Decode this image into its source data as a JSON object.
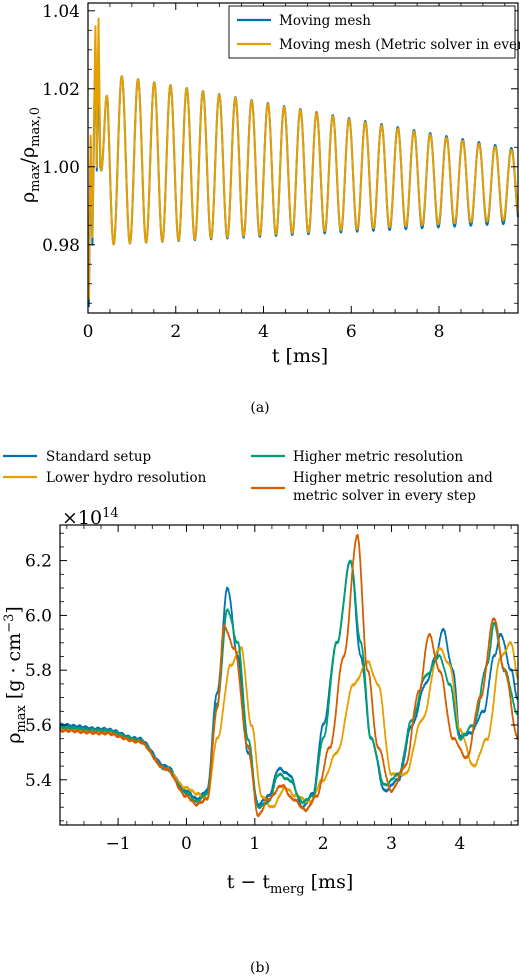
{
  "chart_data": [
    {
      "type": "line",
      "title": "",
      "panel_label": "(a)",
      "xlabel": "t [ms]",
      "ylabel": "ρ_max/ρ_max,0",
      "xlim": [
        0,
        9.8
      ],
      "ylim": [
        0.9625,
        1.042
      ],
      "xticks": [
        0,
        2,
        4,
        6,
        8
      ],
      "yticks": [
        0.98,
        1.0,
        1.02,
        1.04
      ],
      "ytick_labels": [
        "0.98",
        "1.00",
        "1.02",
        "1.04"
      ],
      "legend": {
        "placement": "top-right"
      },
      "series": [
        {
          "name": "Moving mesh",
          "color": "#0072b2",
          "oscillation": {
            "period_ms": 0.37,
            "first_peak_ms": 0.4,
            "peak_start": 1.024,
            "peak_end": 1.0045,
            "trough_start": 0.98,
            "trough_end": 0.9855
          },
          "points": [
            [
              0.02,
              0.964
            ],
            [
              0.06,
              1.006
            ],
            [
              0.1,
              0.98
            ],
            [
              0.14,
              1.012
            ],
            [
              0.17,
              1.033
            ],
            [
              0.2,
              0.999
            ],
            [
              0.24,
              1.031
            ],
            [
              0.28,
              1.0
            ],
            [
              0.3,
              0.999
            ]
          ]
        },
        {
          "name": "Moving mesh (Metric solver in every step)",
          "color": "#e69f00",
          "oscillation": {
            "period_ms": 0.37,
            "first_peak_ms": 0.4,
            "peak_start": 1.024,
            "peak_end": 1.004,
            "trough_start": 0.98,
            "trough_end": 0.9865
          },
          "points": [
            [
              0.02,
              0.966
            ],
            [
              0.06,
              1.008
            ],
            [
              0.1,
              0.982
            ],
            [
              0.14,
              1.014
            ],
            [
              0.17,
              1.036
            ],
            [
              0.2,
              1.0
            ],
            [
              0.24,
              1.038
            ],
            [
              0.28,
              1.002
            ],
            [
              0.3,
              0.999
            ]
          ]
        }
      ]
    },
    {
      "type": "line",
      "title": "",
      "panel_label": "(b)",
      "xlabel": "t − t_merg [ms]",
      "ylabel": "ρ_max [g · cm^−3]",
      "scale_note": "×10^14",
      "xlim": [
        -1.85,
        4.85
      ],
      "ylim": [
        5.235,
        6.33
      ],
      "xticks": [
        -1,
        0,
        1,
        2,
        3,
        4
      ],
      "xtick_labels": [
        "−1",
        "0",
        "1",
        "2",
        "3",
        "4"
      ],
      "yticks": [
        5.4,
        5.6,
        5.8,
        6.0,
        6.2
      ],
      "ytick_labels": [
        "5.4",
        "5.6",
        "5.8",
        "6.0",
        "6.2"
      ],
      "legend": {
        "placement": "above-plot",
        "columns": 2
      },
      "series": [
        {
          "name": "Standard setup",
          "color": "#0072b2",
          "points": [
            [
              -1.85,
              5.6
            ],
            [
              -1.2,
              5.585
            ],
            [
              -0.7,
              5.55
            ],
            [
              -0.3,
              5.45
            ],
            [
              0.0,
              5.36
            ],
            [
              0.15,
              5.33
            ],
            [
              0.3,
              5.36
            ],
            [
              0.45,
              5.72
            ],
            [
              0.6,
              6.1
            ],
            [
              0.75,
              5.85
            ],
            [
              0.9,
              5.5
            ],
            [
              1.05,
              5.31
            ],
            [
              1.2,
              5.34
            ],
            [
              1.35,
              5.44
            ],
            [
              1.5,
              5.42
            ],
            [
              1.7,
              5.3
            ],
            [
              1.85,
              5.35
            ],
            [
              2.0,
              5.6
            ],
            [
              2.2,
              5.9
            ],
            [
              2.4,
              6.2
            ],
            [
              2.55,
              5.85
            ],
            [
              2.7,
              5.55
            ],
            [
              2.9,
              5.36
            ],
            [
              3.1,
              5.4
            ],
            [
              3.3,
              5.6
            ],
            [
              3.5,
              5.75
            ],
            [
              3.65,
              5.85
            ],
            [
              3.75,
              5.95
            ],
            [
              3.9,
              5.8
            ],
            [
              4.0,
              5.56
            ],
            [
              4.15,
              5.57
            ],
            [
              4.35,
              5.65
            ],
            [
              4.5,
              5.85
            ],
            [
              4.6,
              5.93
            ],
            [
              4.75,
              5.8
            ],
            [
              4.85,
              5.69
            ]
          ]
        },
        {
          "name": "Lower hydro resolution",
          "color": "#e69f00",
          "points": [
            [
              -1.85,
              5.585
            ],
            [
              -1.2,
              5.575
            ],
            [
              -0.7,
              5.54
            ],
            [
              -0.3,
              5.44
            ],
            [
              0.0,
              5.37
            ],
            [
              0.15,
              5.35
            ],
            [
              0.3,
              5.33
            ],
            [
              0.45,
              5.55
            ],
            [
              0.65,
              5.82
            ],
            [
              0.8,
              5.88
            ],
            [
              0.95,
              5.6
            ],
            [
              1.1,
              5.34
            ],
            [
              1.25,
              5.3
            ],
            [
              1.45,
              5.37
            ],
            [
              1.6,
              5.34
            ],
            [
              1.8,
              5.32
            ],
            [
              2.0,
              5.4
            ],
            [
              2.2,
              5.5
            ],
            [
              2.45,
              5.75
            ],
            [
              2.65,
              5.83
            ],
            [
              2.8,
              5.75
            ],
            [
              3.0,
              5.42
            ],
            [
              3.2,
              5.42
            ],
            [
              3.45,
              5.62
            ],
            [
              3.7,
              5.88
            ],
            [
              3.85,
              5.82
            ],
            [
              4.0,
              5.58
            ],
            [
              4.2,
              5.45
            ],
            [
              4.4,
              5.55
            ],
            [
              4.6,
              5.85
            ],
            [
              4.75,
              5.9
            ],
            [
              4.85,
              5.77
            ]
          ]
        },
        {
          "name": "Higher metric resolution",
          "color": "#009e73",
          "points": [
            [
              -1.85,
              5.59
            ],
            [
              -1.2,
              5.58
            ],
            [
              -0.7,
              5.545
            ],
            [
              -0.3,
              5.44
            ],
            [
              0.0,
              5.35
            ],
            [
              0.15,
              5.32
            ],
            [
              0.3,
              5.35
            ],
            [
              0.45,
              5.68
            ],
            [
              0.6,
              6.02
            ],
            [
              0.75,
              5.9
            ],
            [
              0.9,
              5.55
            ],
            [
              1.05,
              5.3
            ],
            [
              1.2,
              5.32
            ],
            [
              1.35,
              5.42
            ],
            [
              1.5,
              5.4
            ],
            [
              1.7,
              5.32
            ],
            [
              1.85,
              5.34
            ],
            [
              2.0,
              5.55
            ],
            [
              2.2,
              5.9
            ],
            [
              2.4,
              6.2
            ],
            [
              2.55,
              5.9
            ],
            [
              2.7,
              5.55
            ],
            [
              2.9,
              5.38
            ],
            [
              3.1,
              5.42
            ],
            [
              3.3,
              5.62
            ],
            [
              3.5,
              5.78
            ],
            [
              3.7,
              5.85
            ],
            [
              3.85,
              5.75
            ],
            [
              4.0,
              5.55
            ],
            [
              4.2,
              5.6
            ],
            [
              4.4,
              5.82
            ],
            [
              4.5,
              5.97
            ],
            [
              4.65,
              5.8
            ],
            [
              4.85,
              5.64
            ]
          ]
        },
        {
          "name": "Higher metric resolution and metric solver in every step",
          "color": "#d55e00",
          "points": [
            [
              -1.85,
              5.58
            ],
            [
              -1.2,
              5.57
            ],
            [
              -0.7,
              5.54
            ],
            [
              -0.3,
              5.44
            ],
            [
              0.0,
              5.34
            ],
            [
              0.15,
              5.31
            ],
            [
              0.3,
              5.33
            ],
            [
              0.45,
              5.66
            ],
            [
              0.55,
              5.96
            ],
            [
              0.7,
              5.88
            ],
            [
              0.9,
              5.52
            ],
            [
              1.05,
              5.27
            ],
            [
              1.2,
              5.33
            ],
            [
              1.4,
              5.38
            ],
            [
              1.55,
              5.33
            ],
            [
              1.75,
              5.29
            ],
            [
              1.9,
              5.34
            ],
            [
              2.1,
              5.52
            ],
            [
              2.3,
              5.85
            ],
            [
              2.5,
              6.29
            ],
            [
              2.65,
              5.8
            ],
            [
              2.8,
              5.52
            ],
            [
              3.0,
              5.36
            ],
            [
              3.2,
              5.45
            ],
            [
              3.4,
              5.72
            ],
            [
              3.55,
              5.93
            ],
            [
              3.7,
              5.8
            ],
            [
              3.9,
              5.55
            ],
            [
              4.1,
              5.48
            ],
            [
              4.3,
              5.7
            ],
            [
              4.5,
              5.99
            ],
            [
              4.65,
              5.8
            ],
            [
              4.85,
              5.55
            ]
          ]
        }
      ]
    }
  ]
}
